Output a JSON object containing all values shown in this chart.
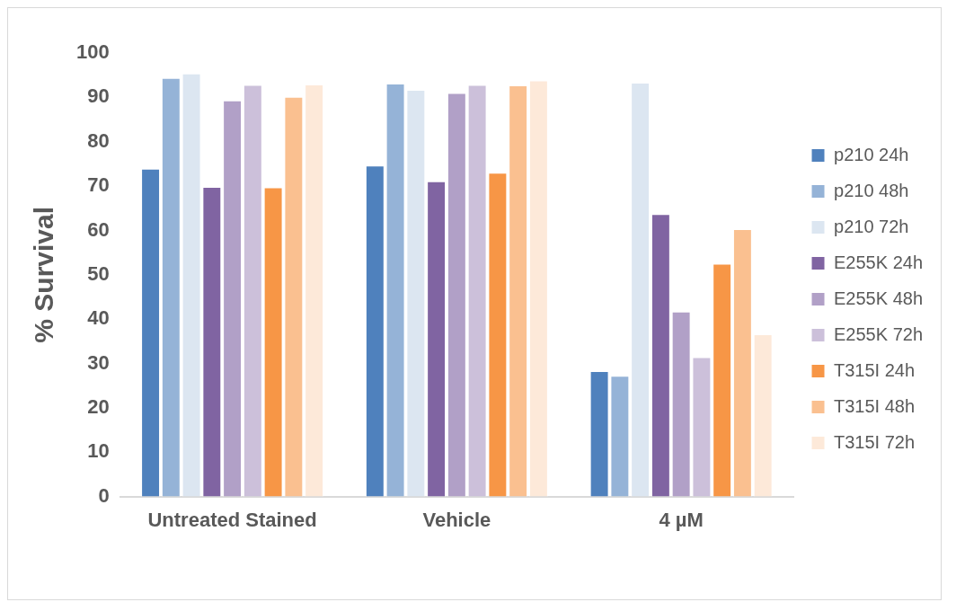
{
  "chart_data": {
    "type": "bar",
    "ylabel": "% Survival",
    "categories": [
      "Untreated Stained",
      "Vehicle",
      "4 µM"
    ],
    "series": [
      {
        "name": "p210 24h",
        "color": "#4f81bd",
        "values": [
          73.9,
          74.6,
          28.3
        ]
      },
      {
        "name": "p210 48h",
        "color": "#95b3d7",
        "values": [
          94.4,
          93.1,
          27.2
        ]
      },
      {
        "name": "p210 72h",
        "color": "#dce6f1",
        "values": [
          95.4,
          91.7,
          93.3
        ]
      },
      {
        "name": "E255K 24h",
        "color": "#8064a2",
        "values": [
          69.8,
          71.1,
          63.7
        ]
      },
      {
        "name": "E255K 48h",
        "color": "#b1a0c7",
        "values": [
          89.3,
          91.0,
          41.7
        ]
      },
      {
        "name": "E255K 72h",
        "color": "#ccc0da",
        "values": [
          92.8,
          92.8,
          31.4
        ]
      },
      {
        "name": "T315I 24h",
        "color": "#f79646",
        "values": [
          69.7,
          73.0,
          52.5
        ]
      },
      {
        "name": "T315I 48h",
        "color": "#fac090",
        "values": [
          90.1,
          92.7,
          60.3
        ]
      },
      {
        "name": "T315I 72h",
        "color": "#fde9d9",
        "values": [
          92.9,
          93.8,
          36.6
        ]
      }
    ],
    "ylim": [
      0,
      100
    ],
    "yticks": [
      0,
      10,
      20,
      30,
      40,
      50,
      60,
      70,
      80,
      90,
      100
    ],
    "grid": false,
    "legend": "right"
  }
}
